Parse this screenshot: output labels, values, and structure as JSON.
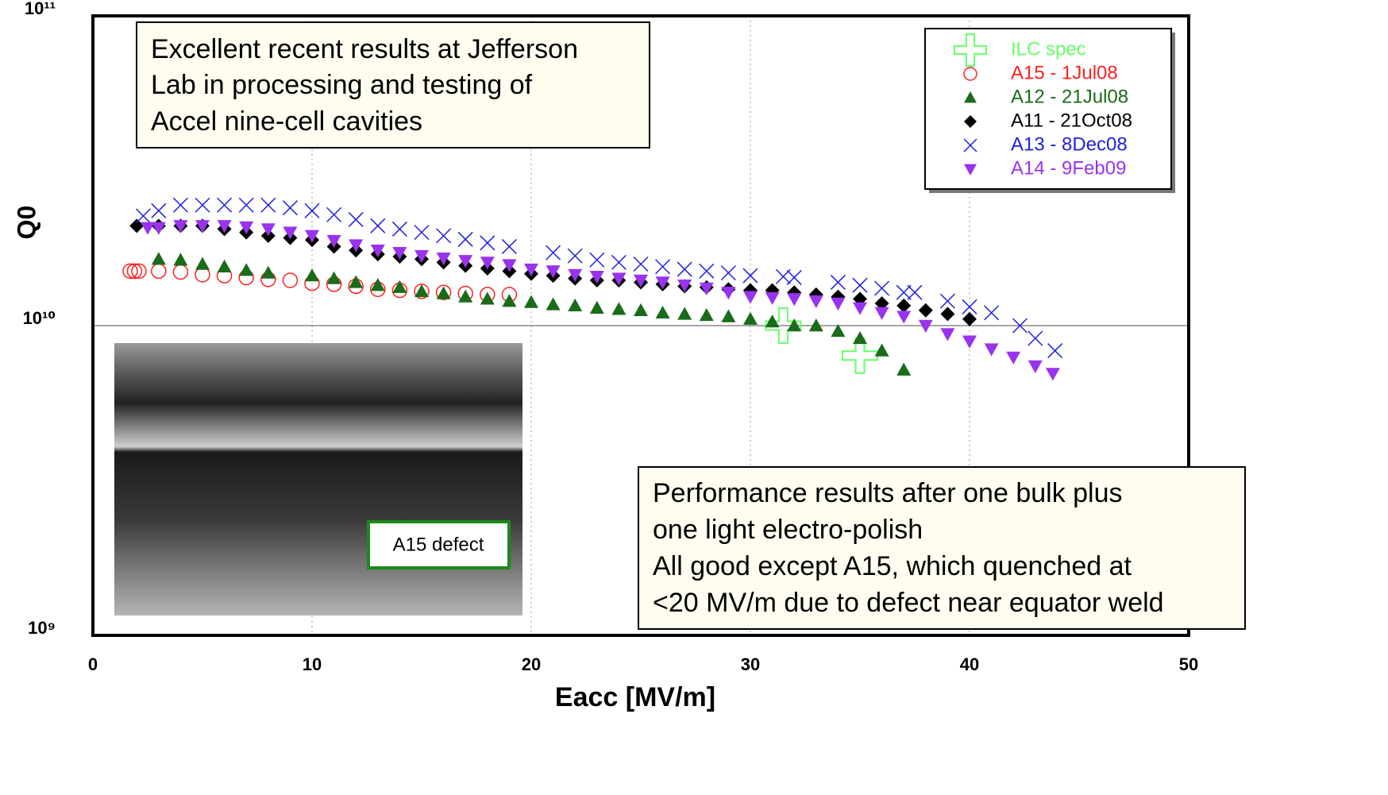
{
  "chart_data": {
    "type": "scatter",
    "x_label": "Eacc [MV/m]",
    "y_label": "Q0",
    "xlim": [
      0,
      50
    ],
    "xticks": [
      0,
      10,
      20,
      30,
      40,
      50
    ],
    "ylim": [
      1000000000.0,
      100000000000.0
    ],
    "yticks": [
      {
        "value": 1000000000.0,
        "label": "10⁹"
      },
      {
        "value": 10000000000.0,
        "label": "10¹⁰"
      },
      {
        "value": 100000000000.0,
        "label": "10¹¹"
      }
    ],
    "log_y": true,
    "grid": true,
    "legend": "upper right",
    "annotations": [
      [
        "Excellent recent results at Jefferson",
        "Lab in processing and testing of",
        "Accel nine-cell cavities"
      ],
      [
        "Performance results after one bulk plus",
        "one light electro-polish",
        "All good except A15, which quenched at",
        "<20 MV/m due to defect near equator weld"
      ]
    ],
    "inset_label": "A15 defect",
    "series": [
      {
        "name": "ILC spec",
        "color": "#66ff66",
        "marker": "plus",
        "x": [
          31.5,
          35
        ],
        "values": [
          10000000000.0,
          8000000000.0
        ]
      },
      {
        "name": "A15 - 1Jul08",
        "color": "#ff2020",
        "marker": "circle",
        "x": [
          1.7,
          1.9,
          2.1,
          3,
          4,
          5,
          6,
          7,
          8,
          9,
          10,
          11,
          12,
          13,
          14,
          15,
          16,
          17,
          18,
          19
        ],
        "values": [
          15000000000.0,
          15000000000.0,
          15000000000.0,
          15000000000.0,
          14900000000.0,
          14600000000.0,
          14500000000.0,
          14300000000.0,
          14100000000.0,
          14000000000.0,
          13700000000.0,
          13600000000.0,
          13400000000.0,
          13100000000.0,
          13000000000.0,
          12900000000.0,
          12800000000.0,
          12700000000.0,
          12600000000.0,
          12600000000.0
        ]
      },
      {
        "name": "A12 - 21Jul08",
        "color": "#1a6b1a",
        "marker": "triangle-up",
        "x": [
          3,
          4,
          5,
          6,
          7,
          8,
          10,
          11,
          12,
          13,
          14,
          15,
          16,
          17,
          18,
          19,
          20,
          21,
          22,
          23,
          24,
          25,
          26,
          27,
          28,
          29,
          30,
          31,
          32,
          33,
          34,
          35,
          36,
          37
        ],
        "values": [
          16400000000.0,
          16300000000.0,
          15800000000.0,
          15500000000.0,
          15100000000.0,
          14800000000.0,
          14500000000.0,
          14200000000.0,
          13800000000.0,
          13500000000.0,
          13300000000.0,
          12900000000.0,
          12700000000.0,
          12400000000.0,
          12200000000.0,
          12000000000.0,
          11900000000.0,
          11700000000.0,
          11600000000.0,
          11400000000.0,
          11300000000.0,
          11200000000.0,
          11000000000.0,
          10900000000.0,
          10800000000.0,
          10700000000.0,
          10500000000.0,
          10300000000.0,
          10000000000.0,
          10000000000.0,
          9600000000.0,
          9100000000.0,
          8300000000.0,
          7200000000.0
        ]
      },
      {
        "name": "A11 - 21Oct08",
        "color": "#000000",
        "marker": "diamond",
        "x": [
          2,
          3,
          4,
          5,
          6,
          7,
          8,
          9,
          10,
          11,
          12,
          13,
          14,
          15,
          16,
          17,
          18,
          19,
          20,
          21,
          22,
          23,
          24,
          25,
          26,
          27,
          28,
          29,
          30,
          31,
          32,
          33,
          34,
          35,
          36,
          37,
          38,
          39,
          40
        ],
        "values": [
          21000000000.0,
          21000000000.0,
          21000000000.0,
          21000000000.0,
          20500000000.0,
          20000000000.0,
          19500000000.0,
          19200000000.0,
          18900000000.0,
          18000000000.0,
          17500000000.0,
          17000000000.0,
          16700000000.0,
          16400000000.0,
          16000000000.0,
          15600000000.0,
          15300000000.0,
          15000000000.0,
          14700000000.0,
          14500000000.0,
          14200000000.0,
          14000000000.0,
          14000000000.0,
          13800000000.0,
          13600000000.0,
          13400000000.0,
          13300000000.0,
          13100000000.0,
          13000000000.0,
          13000000000.0,
          12800000000.0,
          12600000000.0,
          12400000000.0,
          12200000000.0,
          11800000000.0,
          11600000000.0,
          11200000000.0,
          10900000000.0,
          10500000000.0
        ]
      },
      {
        "name": "A13 - 8Dec08",
        "color": "#2020e0",
        "marker": "x",
        "x": [
          2.3,
          3,
          4,
          5,
          6,
          7,
          8,
          9,
          10,
          11,
          12,
          13,
          14,
          15,
          16,
          17,
          18,
          19,
          21,
          22,
          23,
          24,
          25,
          26,
          27,
          28,
          29,
          30,
          31.5,
          32,
          34,
          35,
          36,
          37,
          37.5,
          39,
          40,
          41,
          42.3,
          43,
          43.9
        ],
        "values": [
          22600000000.0,
          23500000000.0,
          24500000000.0,
          24500000000.0,
          24500000000.0,
          24500000000.0,
          24500000000.0,
          24000000000.0,
          23500000000.0,
          22800000000.0,
          22000000000.0,
          21000000000.0,
          20500000000.0,
          20000000000.0,
          19500000000.0,
          19000000000.0,
          18500000000.0,
          18000000000.0,
          17200000000.0,
          16800000000.0,
          16300000000.0,
          16000000000.0,
          15800000000.0,
          15500000000.0,
          15200000000.0,
          15000000000.0,
          14800000000.0,
          14500000000.0,
          14400000000.0,
          14300000000.0,
          13800000000.0,
          13500000000.0,
          13200000000.0,
          12800000000.0,
          12800000000.0,
          12000000000.0,
          11500000000.0,
          11000000000.0,
          10000000000.0,
          9100000000.0,
          8300000000.0
        ]
      },
      {
        "name": "A14 - 9Feb09",
        "color": "#9933ee",
        "marker": "triangle-down",
        "x": [
          2.5,
          3,
          4,
          5,
          6,
          7,
          8,
          9,
          10,
          11,
          12,
          13,
          14,
          15,
          16,
          17,
          18,
          19,
          20,
          21,
          22,
          23,
          24,
          25,
          26,
          27,
          28,
          29,
          30,
          31,
          32,
          33,
          34,
          35,
          36,
          37,
          38,
          39,
          40,
          41,
          42,
          43,
          43.8
        ],
        "values": [
          20700000000.0,
          20700000000.0,
          21000000000.0,
          21000000000.0,
          21000000000.0,
          20800000000.0,
          20500000000.0,
          20000000000.0,
          19500000000.0,
          18800000000.0,
          18200000000.0,
          17500000000.0,
          17200000000.0,
          16800000000.0,
          16500000000.0,
          16200000000.0,
          16000000000.0,
          15700000000.0,
          15200000000.0,
          15000000000.0,
          14600000000.0,
          14400000000.0,
          14200000000.0,
          14000000000.0,
          13800000000.0,
          13500000000.0,
          13200000000.0,
          12800000000.0,
          12400000000.0,
          12300000000.0,
          12200000000.0,
          12000000000.0,
          11800000000.0,
          11400000000.0,
          11000000000.0,
          10700000000.0,
          10000000000.0,
          9400000000.0,
          8900000000.0,
          8400000000.0,
          7900000000.0,
          7400000000.0,
          7000000000.0
        ]
      }
    ]
  }
}
